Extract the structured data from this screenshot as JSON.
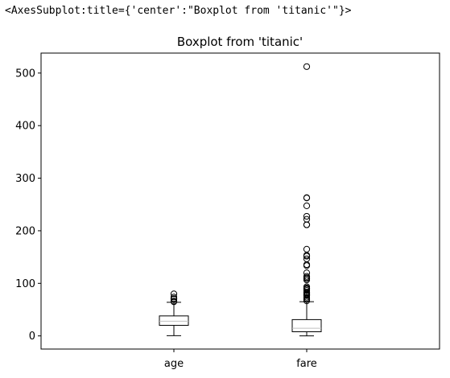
{
  "output_repr": "<AxesSubplot:title={'center':\"Boxplot from 'titanic'\"}>",
  "chart_data": {
    "type": "boxplot",
    "title": "Boxplot from 'titanic'",
    "xlabel": "",
    "ylabel": "",
    "ylim": [
      -25,
      538
    ],
    "yticks": [
      0,
      100,
      200,
      300,
      400,
      500
    ],
    "grid": false,
    "categories": [
      "age",
      "fare"
    ],
    "boxes": [
      {
        "name": "age",
        "whisker_low": 0.42,
        "q1": 20.1,
        "median": 28.0,
        "q3": 38.0,
        "whisker_high": 64.0,
        "fliers": [
          65,
          66,
          70,
          70.5,
          71,
          74,
          80
        ]
      },
      {
        "name": "fare",
        "whisker_low": 0.0,
        "q1": 7.9,
        "median": 14.5,
        "q3": 31.0,
        "whisker_high": 65.0,
        "fliers": [
          66.6,
          69.3,
          71.0,
          73.5,
          76.7,
          77.3,
          78.3,
          79.2,
          80.0,
          82.2,
          83.2,
          86.5,
          89.1,
          90.0,
          91.1,
          93.5,
          106.4,
          108.9,
          110.9,
          113.3,
          120.0,
          133.7,
          135.6,
          146.5,
          151.6,
          153.5,
          164.9,
          211.3,
          211.5,
          221.8,
          227.5,
          247.5,
          262.4,
          263.0,
          512.3
        ]
      }
    ]
  },
  "colors": {
    "box": "#000000",
    "median": "#bfbfbf",
    "background": "#ffffff"
  }
}
